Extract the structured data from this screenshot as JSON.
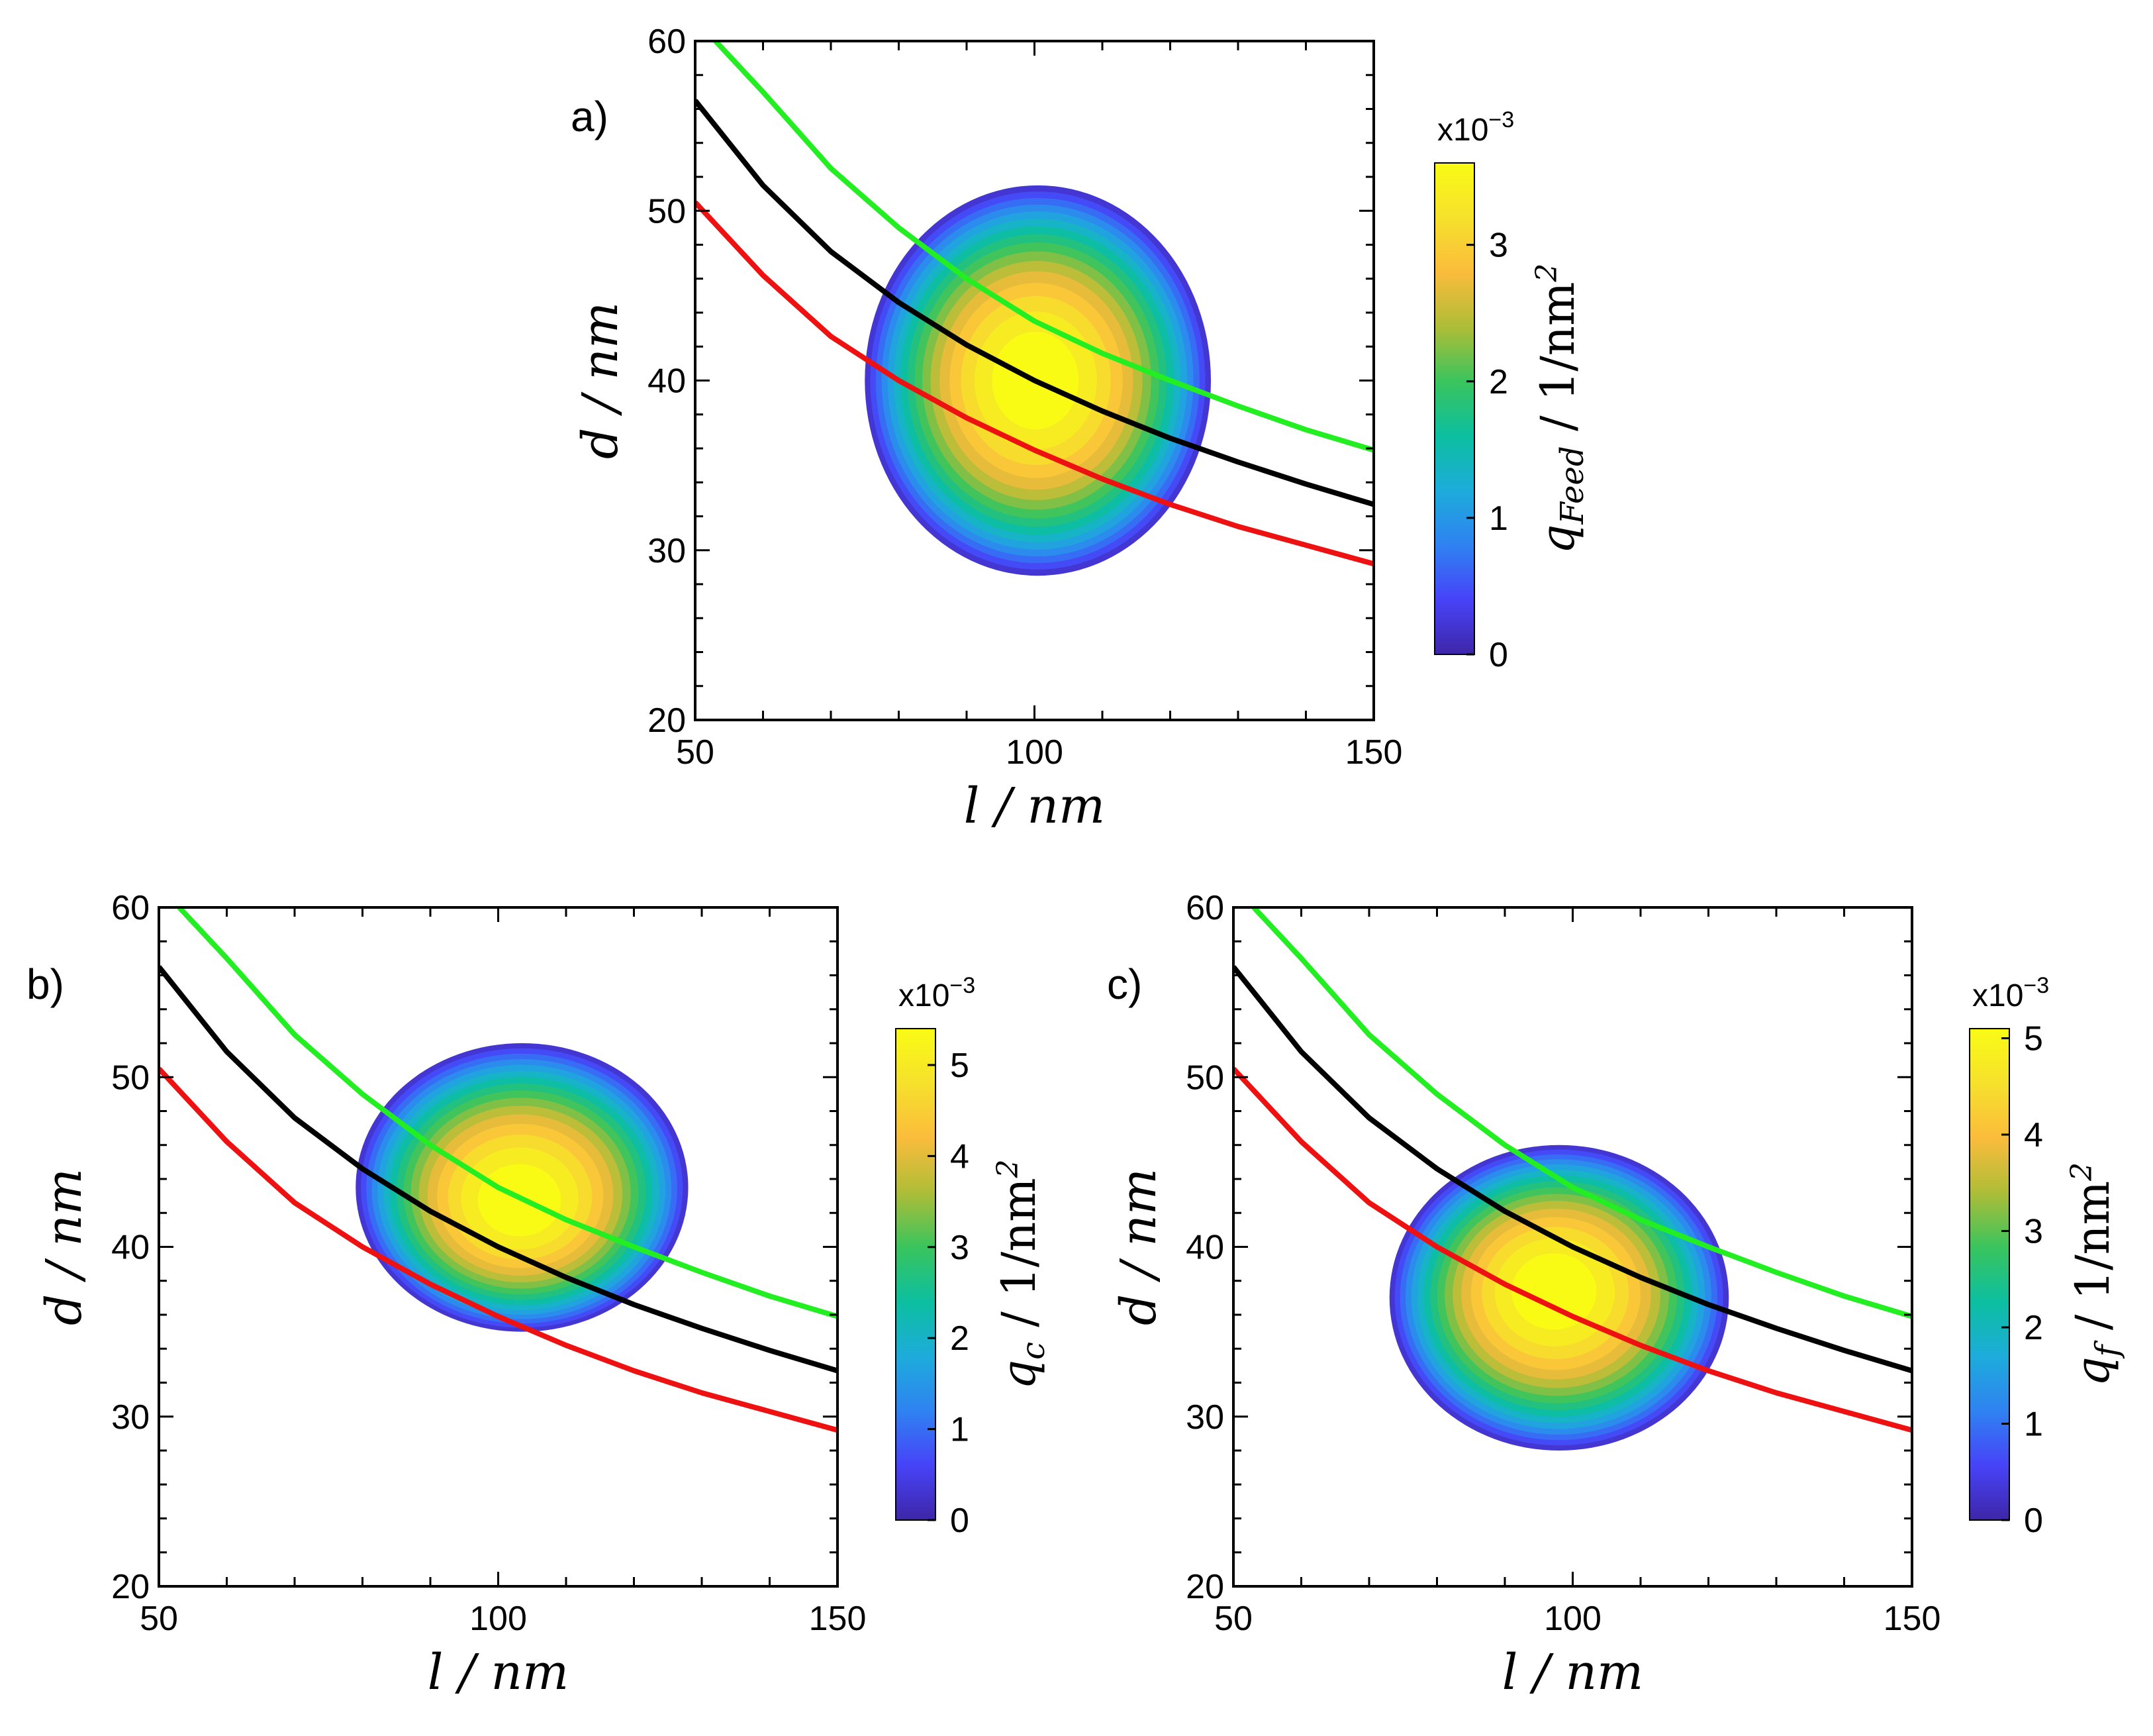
{
  "chart_data": [
    {
      "type": "heatmap",
      "panel_label": "a)",
      "xlabel": "l / nm",
      "ylabel": "d / nm",
      "xlim": [
        50,
        150
      ],
      "ylim": [
        20,
        60
      ],
      "xticks": [
        50,
        100,
        150
      ],
      "yticks": [
        20,
        30,
        40,
        50,
        60
      ],
      "colorbar": {
        "label_main": "q",
        "label_sub": "Feed",
        "label_unit": " / 1/nm",
        "label_pow": "2",
        "exp_base": "x10",
        "exp_pow": "−3",
        "range": [
          0,
          3.6
        ],
        "ticks": [
          0,
          1,
          2,
          3
        ],
        "colors": [
          "#3e26a8",
          "#4743f8",
          "#2f82f2",
          "#1dacdb",
          "#0cbfa0",
          "#3ac45d",
          "#aebd37",
          "#fbbc3c",
          "#f6e12c",
          "#f9fb15"
        ]
      },
      "distribution": {
        "peak_l": 100,
        "peak_d": 40,
        "l_min": 75,
        "l_max": 126,
        "d_min": 28.5,
        "d_max": 51.5
      },
      "series": [
        {
          "name": "green",
          "color": "#22ee22",
          "x": [
            53,
            60,
            70,
            80,
            90,
            100,
            110,
            120,
            130,
            140,
            150
          ],
          "y": [
            60,
            57,
            52.5,
            49,
            46,
            43.5,
            41.6,
            40,
            38.5,
            37.1,
            35.9
          ]
        },
        {
          "name": "black",
          "color": "#000000",
          "x": [
            50,
            60,
            70,
            80,
            90,
            100,
            110,
            120,
            130,
            140,
            150
          ],
          "y": [
            56.5,
            51.5,
            47.6,
            44.6,
            42.1,
            40,
            38.2,
            36.6,
            35.2,
            33.9,
            32.7
          ]
        },
        {
          "name": "red",
          "color": "#ee1111",
          "x": [
            50,
            60,
            70,
            80,
            90,
            100,
            110,
            120,
            130,
            140,
            150
          ],
          "y": [
            50.5,
            46.2,
            42.6,
            40,
            37.8,
            35.9,
            34.2,
            32.7,
            31.4,
            30.3,
            29.2
          ]
        }
      ]
    },
    {
      "type": "heatmap",
      "panel_label": "b)",
      "xlabel": "l / nm",
      "ylabel": "d / nm",
      "xlim": [
        50,
        150
      ],
      "ylim": [
        20,
        60
      ],
      "xticks": [
        50,
        100,
        150
      ],
      "yticks": [
        20,
        30,
        40,
        50,
        60
      ],
      "colorbar": {
        "label_main": "q",
        "label_sub": "c",
        "label_unit": " / 1/nm",
        "label_pow": "2",
        "exp_base": "x10",
        "exp_pow": "−3",
        "range": [
          0,
          5.4
        ],
        "ticks": [
          0,
          1,
          2,
          3,
          4,
          5
        ],
        "colors": [
          "#3e26a8",
          "#4743f8",
          "#2f82f2",
          "#1dacdb",
          "#0cbfa0",
          "#3ac45d",
          "#aebd37",
          "#fbbc3c",
          "#f6e12c",
          "#f9fb15"
        ]
      },
      "distribution": {
        "peak_l": 103,
        "peak_d": 42.5,
        "l_min": 79,
        "l_max": 128,
        "d_min": 35,
        "d_max": 52
      },
      "series": [
        {
          "name": "green",
          "color": "#22ee22",
          "x": [
            53,
            60,
            70,
            80,
            90,
            100,
            110,
            120,
            130,
            140,
            150
          ],
          "y": [
            60,
            57,
            52.5,
            49,
            46,
            43.5,
            41.6,
            40,
            38.5,
            37.1,
            35.9
          ]
        },
        {
          "name": "black",
          "color": "#000000",
          "x": [
            50,
            60,
            70,
            80,
            90,
            100,
            110,
            120,
            130,
            140,
            150
          ],
          "y": [
            56.5,
            51.5,
            47.6,
            44.6,
            42.1,
            40,
            38.2,
            36.6,
            35.2,
            33.9,
            32.7
          ]
        },
        {
          "name": "red",
          "color": "#ee1111",
          "x": [
            50,
            60,
            70,
            80,
            90,
            100,
            110,
            120,
            130,
            140,
            150
          ],
          "y": [
            50.5,
            46.2,
            42.6,
            40,
            37.8,
            35.9,
            34.2,
            32.7,
            31.4,
            30.3,
            29.2
          ]
        }
      ]
    },
    {
      "type": "heatmap",
      "panel_label": "c)",
      "xlabel": "l / nm",
      "ylabel": "d / nm",
      "xlim": [
        50,
        150
      ],
      "ylim": [
        20,
        60
      ],
      "xticks": [
        50,
        100,
        150
      ],
      "yticks": [
        20,
        30,
        40,
        50,
        60
      ],
      "colorbar": {
        "label_main": "q",
        "label_sub": "f",
        "label_unit": " / 1/nm",
        "label_pow": "2",
        "exp_base": "x10",
        "exp_pow": "−3",
        "range": [
          0,
          5.1
        ],
        "ticks": [
          0,
          1,
          2,
          3,
          4,
          5
        ],
        "colors": [
          "#3e26a8",
          "#4743f8",
          "#2f82f2",
          "#1dacdb",
          "#0cbfa0",
          "#3ac45d",
          "#aebd37",
          "#fbbc3c",
          "#f6e12c",
          "#f9fb15"
        ]
      },
      "distribution": {
        "peak_l": 97,
        "peak_d": 37.5,
        "l_min": 73,
        "l_max": 123,
        "d_min": 28,
        "d_max": 46
      },
      "series": [
        {
          "name": "green",
          "color": "#22ee22",
          "x": [
            53,
            60,
            70,
            80,
            90,
            100,
            110,
            120,
            130,
            140,
            150
          ],
          "y": [
            60,
            57,
            52.5,
            49,
            46,
            43.5,
            41.6,
            40,
            38.5,
            37.1,
            35.9
          ]
        },
        {
          "name": "black",
          "color": "#000000",
          "x": [
            50,
            60,
            70,
            80,
            90,
            100,
            110,
            120,
            130,
            140,
            150
          ],
          "y": [
            56.5,
            51.5,
            47.6,
            44.6,
            42.1,
            40,
            38.2,
            36.6,
            35.2,
            33.9,
            32.7
          ]
        },
        {
          "name": "red",
          "color": "#ee1111",
          "x": [
            50,
            60,
            70,
            80,
            90,
            100,
            110,
            120,
            130,
            140,
            150
          ],
          "y": [
            50.5,
            46.2,
            42.6,
            40,
            37.8,
            35.9,
            34.2,
            32.7,
            31.4,
            30.3,
            29.2
          ]
        }
      ]
    }
  ]
}
